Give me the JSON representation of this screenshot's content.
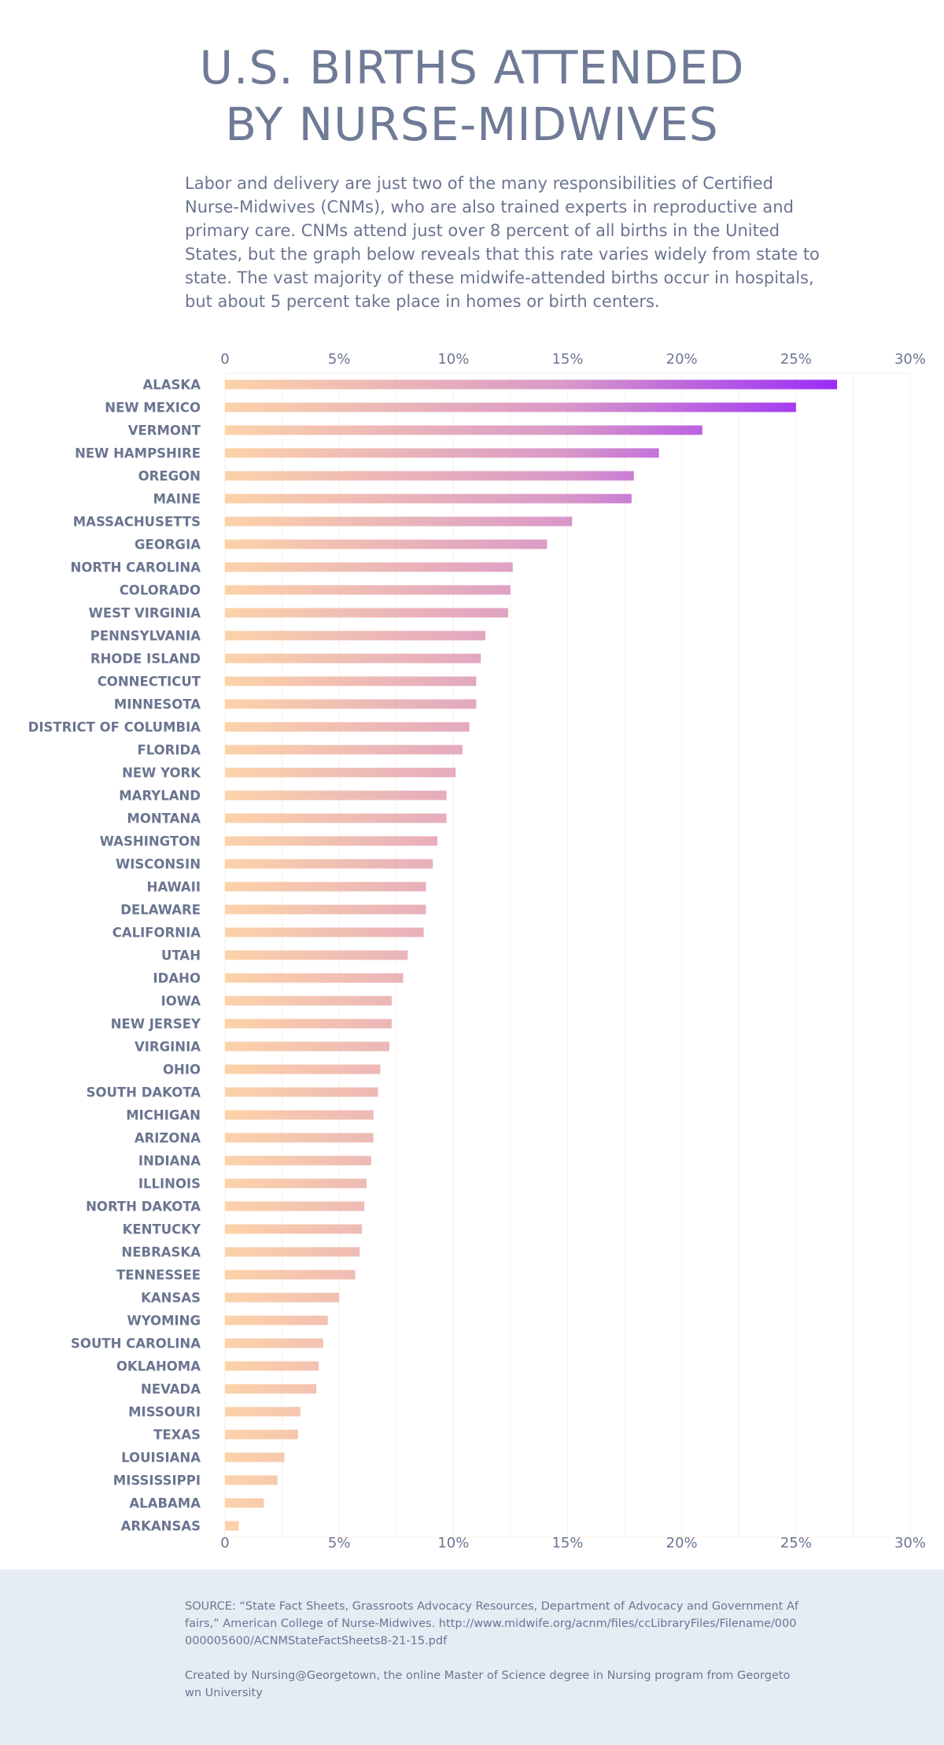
{
  "title": [
    "U.S. BIRTHS ATTENDED",
    "BY NURSE-MIDWIVES"
  ],
  "intro": "Labor and delivery are just two of the many responsibilities of Certified Nurse-Midwives (CNMs), who are also trained experts in reproductive and primary care. CNMs attend just over 8 percent of all births in the United States, but the graph below reveals that this rate varies widely from state to state. The vast majority of these midwife-attended births occur in hospitals, but about 5 percent take place in homes or birth centers.",
  "chart_data": {
    "type": "bar",
    "orientation": "horizontal",
    "xlim": [
      0,
      30
    ],
    "x_ticks": [
      "0",
      "5%",
      "10%",
      "15%",
      "20%",
      "25%",
      "30%"
    ],
    "tick_positions": [
      0,
      5,
      10,
      15,
      20,
      25,
      30
    ],
    "axis_labels_position": "top and bottom",
    "grid": true,
    "colors": {
      "low": "#fdd2a8",
      "mid": "#d28fce",
      "high": "#9a2cf8",
      "grid": "#fdf1e6",
      "text": "#6b7591"
    },
    "categories": [
      "ALASKA",
      "NEW MEXICO",
      "VERMONT",
      "NEW HAMPSHIRE",
      "OREGON",
      "MAINE",
      "MASSACHUSETTS",
      "GEORGIA",
      "NORTH CAROLINA",
      "COLORADO",
      "WEST VIRGINIA",
      "PENNSYLVANIA",
      "RHODE ISLAND",
      "CONNECTICUT",
      "MINNESOTA",
      "DISTRICT OF COLUMBIA",
      "FLORIDA",
      "NEW YORK",
      "MARYLAND",
      "MONTANA",
      "WASHINGTON",
      "WISCONSIN",
      "HAWAII",
      "DELAWARE",
      "CALIFORNIA",
      "UTAH",
      "IDAHO",
      "IOWA",
      "NEW JERSEY",
      "VIRGINIA",
      "OHIO",
      "SOUTH DAKOTA",
      "MICHIGAN",
      "ARIZONA",
      "INDIANA",
      "ILLINOIS",
      "NORTH DAKOTA",
      "KENTUCKY",
      "NEBRASKA",
      "TENNESSEE",
      "KANSAS",
      "WYOMING",
      "SOUTH CAROLINA",
      "OKLAHOMA",
      "NEVADA",
      "MISSOURI",
      "TEXAS",
      "LOUISIANA",
      "MISSISSIPPI",
      "ALABAMA",
      "ARKANSAS"
    ],
    "values": [
      26.8,
      25.0,
      20.9,
      19.0,
      17.9,
      17.8,
      15.2,
      14.1,
      12.6,
      12.5,
      12.4,
      11.4,
      11.2,
      11.0,
      11.0,
      10.7,
      10.4,
      10.1,
      9.7,
      9.7,
      9.3,
      9.1,
      8.8,
      8.8,
      8.7,
      8.0,
      7.8,
      7.3,
      7.3,
      7.2,
      6.8,
      6.7,
      6.5,
      6.5,
      6.4,
      6.2,
      6.1,
      6.0,
      5.9,
      5.7,
      5.0,
      4.5,
      4.3,
      4.1,
      4.0,
      3.3,
      3.2,
      2.6,
      2.3,
      1.7,
      0.6
    ]
  },
  "footer": {
    "source": "SOURCE: “State Fact Sheets, Grassroots Advocacy Resources, Department of Advocacy and Government Affairs,” American College of Nurse-Midwives. http://www.midwife.org/acnm/files/ccLibraryFiles/Filename/000000005600/ACNMStateFactSheets8-21-15.pdf",
    "credit": "Created by Nursing@Georgetown, the online Master of Science degree in Nursing program from Georgetown University"
  }
}
